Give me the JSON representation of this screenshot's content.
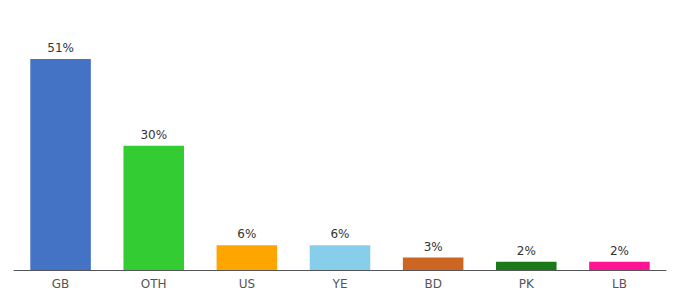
{
  "chart_data": {
    "type": "bar",
    "categories": [
      "GB",
      "OTH",
      "US",
      "YE",
      "BD",
      "PK",
      "LB"
    ],
    "values": [
      51,
      30,
      6,
      6,
      3,
      2,
      2
    ],
    "value_labels": [
      "51%",
      "30%",
      "6%",
      "6%",
      "3%",
      "2%",
      "2%"
    ],
    "colors": [
      "#4472C4",
      "#33CC33",
      "#FFA500",
      "#87CEEB",
      "#CC6622",
      "#1A7A1A",
      "#FF1493"
    ],
    "ylim": [
      0,
      58
    ],
    "data_labels": true,
    "tick_labels": "x",
    "grid": false
  }
}
